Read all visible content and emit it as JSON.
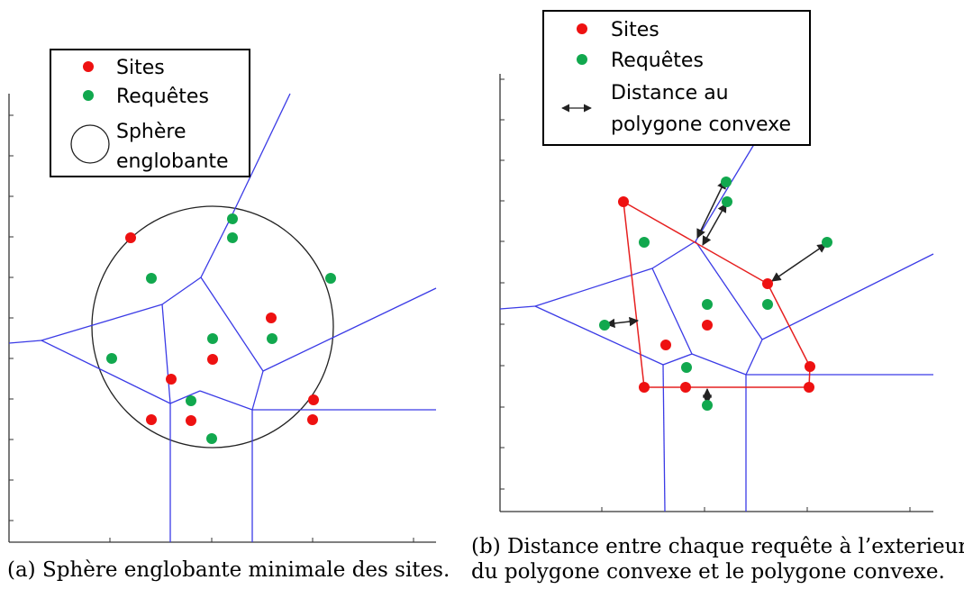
{
  "figure": {
    "left_panel": {
      "legend": {
        "sites": "Sites",
        "requetes": "Requêtes",
        "sphere_line1": "Sphère",
        "sphere_line2": "englobante"
      },
      "caption": "(a) Sphère englobante minimale des sites."
    },
    "right_panel": {
      "legend": {
        "sites": "Sites",
        "requetes": "Requêtes",
        "distance_line1": "Distance au",
        "distance_line2": "polygone convexe"
      },
      "caption_line1": "(b) Distance entre chaque requête à l’exterieur",
      "caption_line2": "du polygone convexe et le polygone convexe."
    },
    "colors": {
      "site": "#ee1111",
      "requete": "#11a84e",
      "voronoi": "#3b3be6",
      "hull": "#e62020",
      "circle": "#222222",
      "arrow": "#222222"
    }
  }
}
